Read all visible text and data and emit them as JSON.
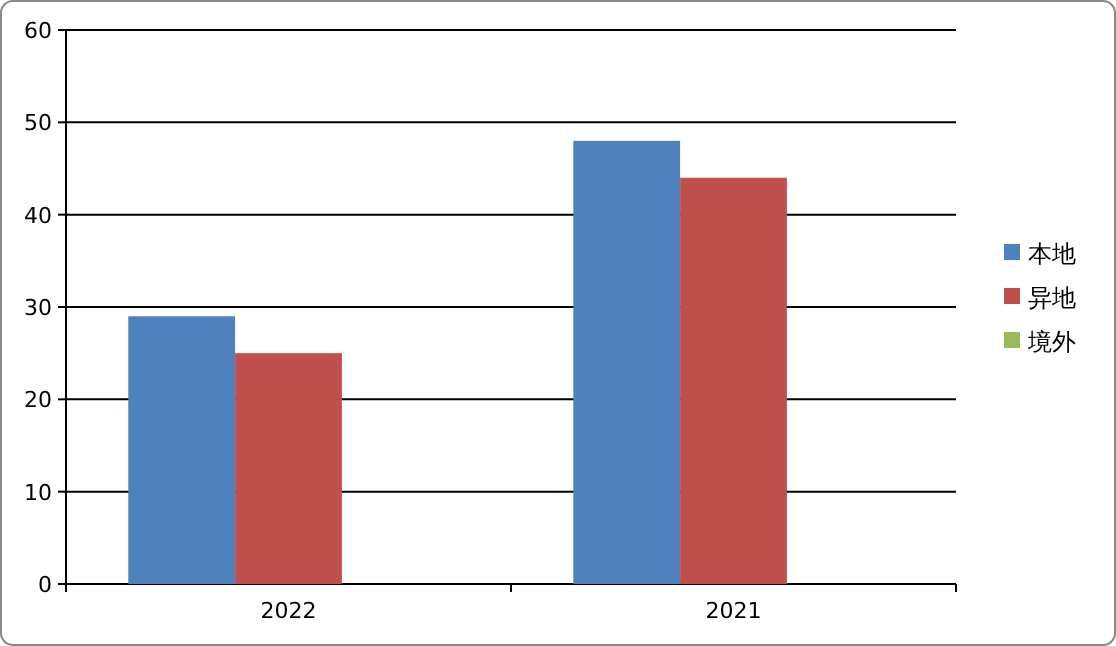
{
  "chart_data": {
    "type": "bar",
    "categories": [
      "2022",
      "2021"
    ],
    "series": [
      {
        "name": "本地",
        "color": "#4f81bd",
        "values": [
          29,
          48
        ]
      },
      {
        "name": "异地",
        "color": "#c0504d",
        "values": [
          25,
          44
        ]
      },
      {
        "name": "境外",
        "color": "#9bbb59",
        "values": [
          0,
          0
        ]
      }
    ],
    "ylim": [
      0,
      60
    ],
    "yticks": [
      0,
      10,
      20,
      30,
      40,
      50,
      60
    ],
    "grid": "y",
    "legend": "right"
  }
}
